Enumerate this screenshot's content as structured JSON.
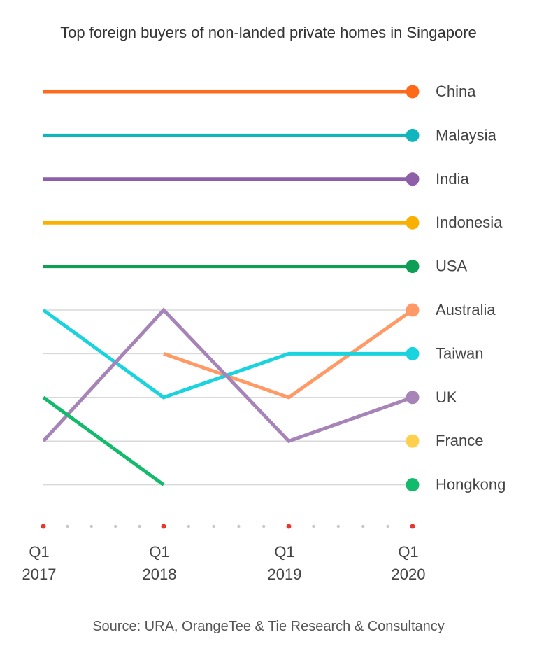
{
  "title": "Top foreign buyers of non-landed private homes in Singapore",
  "source": "Source: URA, OrangeTee & Tie Research & Consultancy",
  "chart_data": {
    "type": "line",
    "title": "Top foreign buyers of non-landed private homes in Singapore",
    "note": "Bump chart: y value = rank (1 = top), lower rank plotted higher",
    "x": [
      "Q1 2017",
      "Q1 2018",
      "Q1 2019",
      "Q1 2020"
    ],
    "x_tick_labels": [
      [
        "Q1",
        "2017"
      ],
      [
        "Q1",
        "2018"
      ],
      [
        "Q1",
        "2019"
      ],
      [
        "Q1",
        "2020"
      ]
    ],
    "ylim": [
      1,
      10
    ],
    "y_inverted": true,
    "grid": true,
    "series": [
      {
        "name": "China",
        "color": "#FF6A1A",
        "values": [
          1,
          1,
          1,
          1
        ]
      },
      {
        "name": "Malaysia",
        "color": "#10B5BE",
        "values": [
          2,
          2,
          2,
          2
        ]
      },
      {
        "name": "India",
        "color": "#8E5FA8",
        "values": [
          3,
          3,
          3,
          3
        ]
      },
      {
        "name": "Indonesia",
        "color": "#F9B000",
        "values": [
          4,
          4,
          4,
          4
        ]
      },
      {
        "name": "USA",
        "color": "#0E9E55",
        "values": [
          5,
          5,
          5,
          5
        ]
      },
      {
        "name": "Australia",
        "color": "#FF9966",
        "values": [
          null,
          7,
          8,
          6
        ]
      },
      {
        "name": "Taiwan",
        "color": "#1AD3DE",
        "values": [
          6,
          8,
          7,
          7
        ]
      },
      {
        "name": "UK",
        "color": "#A784B8",
        "values": [
          9,
          6,
          9,
          8
        ]
      },
      {
        "name": "France",
        "color": "#FFD04D",
        "values": [
          null,
          null,
          null,
          9
        ]
      },
      {
        "name": "Hongkong",
        "color": "#12BA6C",
        "values": [
          8,
          10,
          null,
          10
        ]
      }
    ]
  }
}
